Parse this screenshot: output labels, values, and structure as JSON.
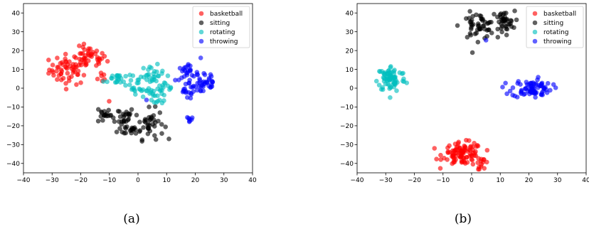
{
  "chart_data": [
    {
      "type": "scatter",
      "caption": "(a)",
      "xlim": [
        -40,
        40
      ],
      "ylim": [
        -45,
        45
      ],
      "xticks": [
        -40,
        -30,
        -20,
        -10,
        0,
        10,
        20,
        30,
        40
      ],
      "yticks": [
        -40,
        -30,
        -20,
        -10,
        0,
        10,
        20,
        30,
        40
      ],
      "grid": false,
      "legend_position": "top-right",
      "series": [
        {
          "name": "basketball",
          "color": "#ff0000",
          "clusters": [
            {
              "cx": -24,
              "cy": 10,
              "sx": 3.5,
              "sy": 4,
              "n": 60
            },
            {
              "cx": -17,
              "cy": 16,
              "sx": 3,
              "sy": 3,
              "n": 40
            },
            {
              "cx": -13,
              "cy": 6,
              "sx": 1,
              "sy": 1.5,
              "n": 6
            },
            {
              "cx": -9.5,
              "cy": -6.5,
              "sx": 0.3,
              "sy": 0.3,
              "n": 1
            }
          ]
        },
        {
          "name": "sitting",
          "color": "#000000",
          "clusters": [
            {
              "cx": -12,
              "cy": -14,
              "sx": 1.2,
              "sy": 2.5,
              "n": 15
            },
            {
              "cx": -6,
              "cy": -15,
              "sx": 2.5,
              "sy": 2.5,
              "n": 25
            },
            {
              "cx": -2,
              "cy": -22,
              "sx": 2.5,
              "sy": 1.5,
              "n": 20
            },
            {
              "cx": 4,
              "cy": -19,
              "sx": 2.5,
              "sy": 4,
              "n": 40
            }
          ]
        },
        {
          "name": "rotating",
          "color": "#00bfbf",
          "clusters": [
            {
              "cx": -7,
              "cy": 5,
              "sx": 2.5,
              "sy": 2,
              "n": 25
            },
            {
              "cx": 0,
              "cy": 1,
              "sx": 1.5,
              "sy": 2,
              "n": 15
            },
            {
              "cx": 5,
              "cy": 7,
              "sx": 2,
              "sy": 2.5,
              "n": 25
            },
            {
              "cx": 9,
              "cy": 0,
              "sx": 1.5,
              "sy": 3,
              "n": 20
            },
            {
              "cx": 5,
              "cy": -4,
              "sx": 2,
              "sy": 2,
              "n": 15
            }
          ]
        },
        {
          "name": "throwing",
          "color": "#0000ff",
          "clusters": [
            {
              "cx": 17,
              "cy": 8,
              "sx": 2,
              "sy": 2,
              "n": 25
            },
            {
              "cx": 23,
              "cy": 3,
              "sx": 2.5,
              "sy": 4,
              "n": 40
            },
            {
              "cx": 17,
              "cy": -2,
              "sx": 1.5,
              "sy": 2,
              "n": 15
            },
            {
              "cx": 18,
              "cy": -17,
              "sx": 0.8,
              "sy": 1,
              "n": 7
            },
            {
              "cx": 2.5,
              "cy": -6.5,
              "sx": 0.3,
              "sy": 0.3,
              "n": 1
            }
          ]
        }
      ]
    },
    {
      "type": "scatter",
      "caption": "(b)",
      "xlim": [
        -40,
        40
      ],
      "ylim": [
        -45,
        45
      ],
      "xticks": [
        -40,
        -30,
        -20,
        -10,
        0,
        10,
        20,
        30,
        40
      ],
      "yticks": [
        -40,
        -30,
        -20,
        -10,
        0,
        10,
        20,
        30,
        40
      ],
      "grid": false,
      "legend_position": "top-right",
      "series": [
        {
          "name": "basketball",
          "color": "#ff0000",
          "clusters": [
            {
              "cx": -3,
              "cy": -35,
              "sx": 3.5,
              "sy": 3,
              "n": 100
            },
            {
              "cx": 4,
              "cy": -40,
              "sx": 1,
              "sy": 1.5,
              "n": 12
            }
          ]
        },
        {
          "name": "sitting",
          "color": "#000000",
          "clusters": [
            {
              "cx": 2,
              "cy": 33,
              "sx": 3,
              "sy": 3.5,
              "n": 50
            },
            {
              "cx": 11,
              "cy": 35,
              "sx": 2,
              "sy": 3,
              "n": 40
            }
          ]
        },
        {
          "name": "rotating",
          "color": "#00bfbf",
          "clusters": [
            {
              "cx": -28,
              "cy": 5,
              "sx": 2.5,
              "sy": 3.5,
              "n": 80
            }
          ]
        },
        {
          "name": "throwing",
          "color": "#0000ff",
          "clusters": [
            {
              "cx": 21,
              "cy": 0,
              "sx": 3.5,
              "sy": 2.5,
              "n": 80
            },
            {
              "cx": 5,
              "cy": 25.5,
              "sx": 0.3,
              "sy": 0.3,
              "n": 1
            }
          ]
        }
      ]
    }
  ]
}
